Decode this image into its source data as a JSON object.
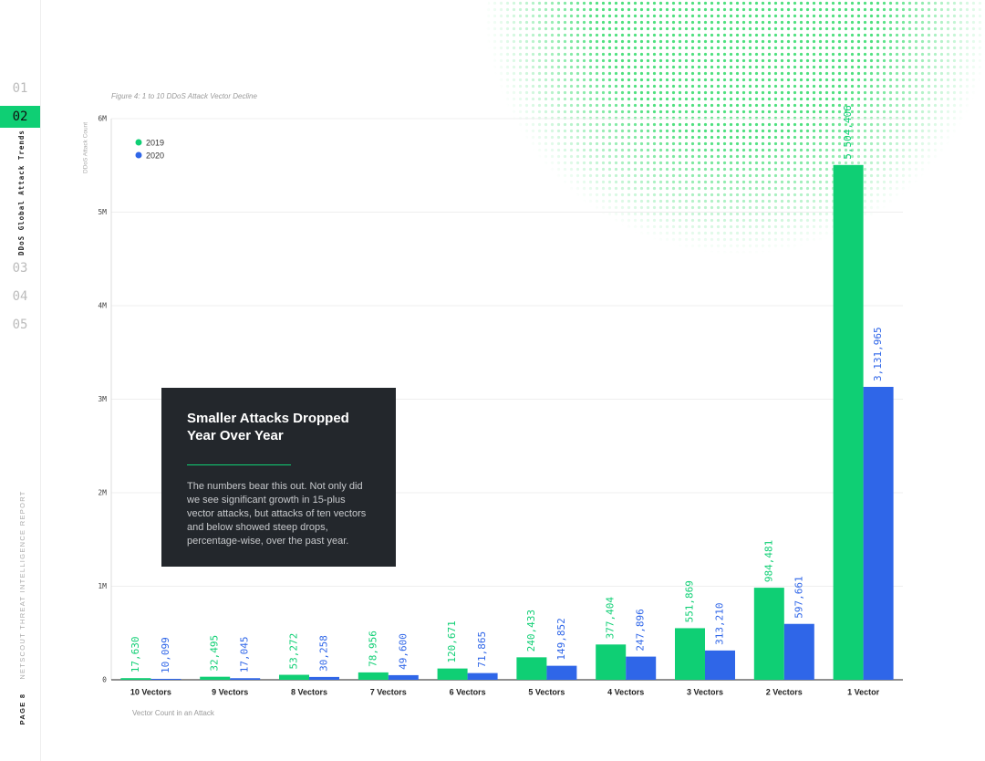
{
  "chart_data": {
    "type": "bar",
    "title": "Figure 4: 1 to 10 DDoS Attack Vector Decline",
    "ylabel": "DDoS Attack Count",
    "xlabel": "Vector Count in an Attack",
    "categories": [
      "10 Vectors",
      "9 Vectors",
      "8 Vectors",
      "7 Vectors",
      "6 Vectors",
      "5 Vectors",
      "4 Vectors",
      "3 Vectors",
      "2 Vectors",
      "1 Vector"
    ],
    "series": [
      {
        "name": "2019",
        "color": "#0fcf74",
        "values": [
          17630,
          32495,
          53272,
          78956,
          120671,
          240433,
          377404,
          551869,
          984481,
          5504406
        ],
        "value_labels": [
          "17,630",
          "32,495",
          "53,272",
          "78,956",
          "120,671",
          "240,433",
          "377,404",
          "551,869",
          "984,481",
          "5,504,406"
        ]
      },
      {
        "name": "2020",
        "color": "#2f66e8",
        "values": [
          10099,
          17045,
          30258,
          49600,
          71865,
          149852,
          247896,
          313210,
          597661,
          3131965
        ],
        "value_labels": [
          "10,099",
          "17,045",
          "30,258",
          "49,600",
          "71,865",
          "149,852",
          "247,896",
          "313,210",
          "597,661",
          "3,131,965"
        ]
      }
    ],
    "ylim": [
      0,
      6000000
    ],
    "yticks": [
      0,
      {
        "value": 1000000,
        "label": "1M"
      },
      {
        "value": 2000000,
        "label": "2M"
      },
      {
        "value": 3000000,
        "label": "3M"
      },
      {
        "value": 4000000,
        "label": "4M"
      },
      {
        "value": 5000000,
        "label": "5M"
      },
      {
        "value": 6000000,
        "label": "6M"
      }
    ],
    "grid": true,
    "legend": "upper left"
  },
  "sidebar": {
    "sections": [
      "01",
      "02",
      "03",
      "04",
      "05"
    ],
    "active_title": "DDoS Global Attack Trends",
    "report": "NETSCOUT THREAT INTELLIGENCE REPORT",
    "page": "PAGE 8"
  },
  "callout": {
    "title": "Smaller Attacks Dropped Year Over Year",
    "text": "The numbers bear this out. Not only did we see significant growth in 15-plus vector attacks, but attacks of ten vectors and below showed steep drops, percentage-wise, over the past year."
  }
}
